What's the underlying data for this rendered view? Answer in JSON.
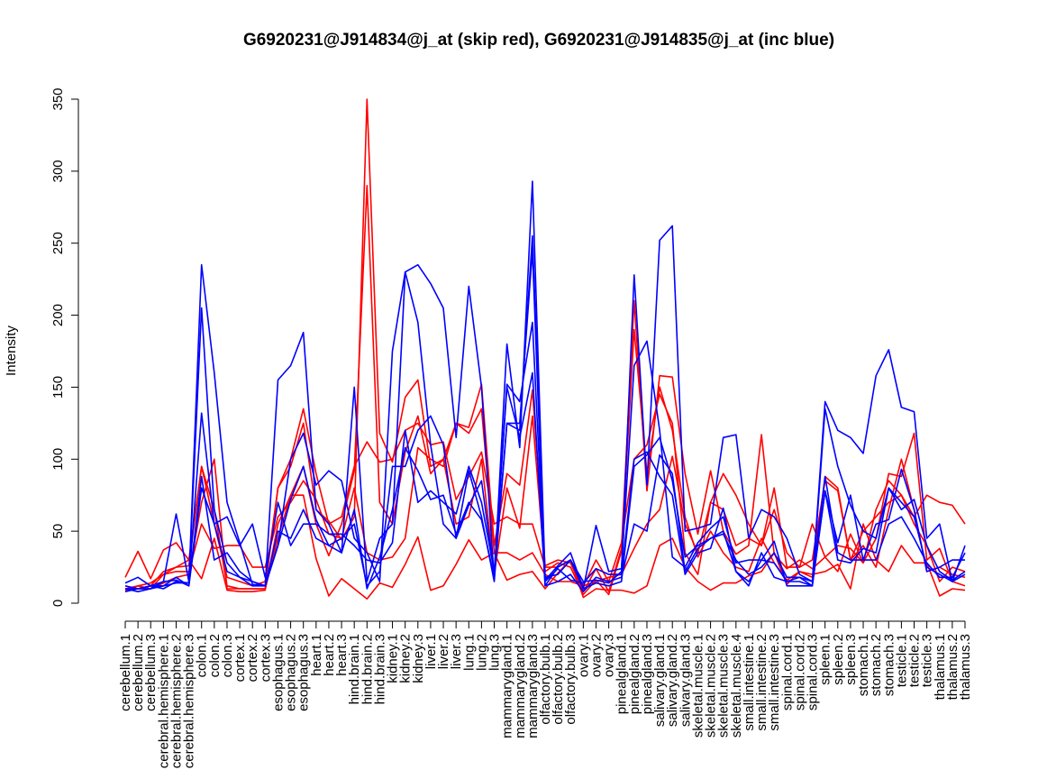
{
  "chart_data": {
    "type": "line",
    "title": "G6920231@J914834@j_at (skip red), G6920231@J914835@j_at (inc blue)",
    "xlabel": "",
    "ylabel": "Intensity",
    "ylim": [
      0,
      350
    ],
    "yticks": [
      0,
      50,
      100,
      150,
      200,
      250,
      300,
      350
    ],
    "grid": false,
    "legend": "none",
    "colors": {
      "skip": "#ff0000",
      "inc": "#0000ff",
      "axis": "#000000"
    },
    "categories": [
      "cerebellum.1",
      "cerebellum.2",
      "cerebellum.3",
      "cerebral.hemisphere.1",
      "cerebral.hemisphere.2",
      "cerebral.hemisphere.3",
      "colon.1",
      "colon.2",
      "colon.3",
      "cortex.1",
      "cortex.2",
      "cortex.3",
      "esophagus.1",
      "esophagus.2",
      "esophagus.3",
      "heart.1",
      "heart.2",
      "heart.3",
      "hind.brain.1",
      "hind.brain.2",
      "hind.brain.3",
      "kidney.1",
      "kidney.2",
      "kidney.3",
      "liver.1",
      "liver.2",
      "liver.3",
      "lung.1",
      "lung.2",
      "lung.3",
      "mammarygland.1",
      "mammarygland.2",
      "mammarygland.3",
      "olfactory.bulb.1",
      "olfactory.bulb.2",
      "olfactory.bulb.3",
      "ovary.1",
      "ovary.2",
      "ovary.3",
      "pinealgland.1",
      "pinealgland.2",
      "pinealgland.3",
      "salivary.gland.1",
      "salivary.gland.2",
      "salivary.gland.3",
      "skeletal.muscle.1",
      "skeletal.muscle.2",
      "skeletal.muscle.3",
      "skeletal.muscle.4",
      "small.intestine.1",
      "small.intestine.2",
      "small.intestine.3",
      "spinal.cord.1",
      "spinal.cord.2",
      "spinal.cord.3",
      "spleen.1",
      "spleen.2",
      "spleen.3",
      "stomach.1",
      "stomach.2",
      "stomach.3",
      "testicle.1",
      "testicle.2",
      "testicle.3",
      "thalamus.1",
      "thalamus.2",
      "thalamus.3"
    ],
    "series": [
      {
        "group": "skip",
        "values": [
          18,
          36,
          17,
          37,
          42,
          30,
          17,
          45,
          9,
          8,
          8,
          9,
          55,
          75,
          75,
          31,
          5,
          17,
          10,
          3,
          14,
          11,
          27,
          46,
          9,
          12,
          27,
          44,
          30,
          35,
          16,
          20,
          22,
          10,
          21,
          30,
          4,
          10,
          9,
          9,
          7,
          12,
          40,
          45,
          25,
          15,
          9,
          14,
          14,
          19,
          22,
          35,
          13,
          22,
          20,
          22,
          27,
          10,
          55,
          30,
          22,
          40,
          28,
          28,
          5,
          10,
          9
        ]
      },
      {
        "group": "skip",
        "values": [
          10,
          10,
          12,
          22,
          25,
          26,
          95,
          65,
          12,
          10,
          10,
          10,
          80,
          95,
          125,
          65,
          57,
          44,
          60,
          350,
          118,
          98,
          143,
          155,
          95,
          100,
          125,
          122,
          152,
          40,
          90,
          82,
          148,
          26,
          30,
          28,
          8,
          24,
          8,
          38,
          210,
          78,
          158,
          157,
          90,
          48,
          92,
          50,
          34,
          40,
          117,
          34,
          24,
          30,
          24,
          32,
          40,
          38,
          28,
          45,
          90,
          88,
          118,
          30,
          38,
          15,
          12
        ]
      },
      {
        "group": "skip",
        "values": [
          9,
          10,
          10,
          14,
          18,
          20,
          70,
          100,
          10,
          10,
          10,
          10,
          45,
          75,
          95,
          55,
          33,
          55,
          92,
          290,
          70,
          55,
          105,
          130,
          90,
          100,
          55,
          60,
          100,
          20,
          80,
          52,
          130,
          22,
          28,
          25,
          6,
          16,
          6,
          36,
          190,
          90,
          150,
          120,
          60,
          32,
          50,
          35,
          25,
          22,
          45,
          28,
          16,
          22,
          18,
          88,
          80,
          30,
          40,
          25,
          65,
          100,
          65,
          22,
          25,
          20,
          18
        ]
      },
      {
        "group": "skip",
        "values": [
          8,
          12,
          10,
          20,
          22,
          22,
          55,
          38,
          40,
          40,
          25,
          25,
          60,
          70,
          85,
          72,
          48,
          45,
          80,
          35,
          30,
          32,
          45,
          108,
          100,
          95,
          125,
          118,
          135,
          35,
          35,
          30,
          35,
          20,
          15,
          15,
          12,
          15,
          18,
          20,
          38,
          55,
          65,
          102,
          55,
          35,
          70,
          90,
          75,
          55,
          40,
          65,
          35,
          25,
          55,
          32,
          22,
          48,
          28,
          65,
          85,
          75,
          55,
          40,
          15,
          25,
          22
        ]
      },
      {
        "group": "skip",
        "values": [
          10,
          12,
          14,
          20,
          25,
          30,
          95,
          55,
          18,
          15,
          12,
          15,
          80,
          100,
          135,
          90,
          55,
          60,
          95,
          112,
          98,
          100,
          120,
          125,
          110,
          112,
          72,
          88,
          105,
          55,
          60,
          55,
          55,
          25,
          25,
          30,
          12,
          30,
          15,
          42,
          100,
          110,
          145,
          125,
          35,
          20,
          70,
          65,
          40,
          45,
          40,
          80,
          25,
          25,
          30,
          85,
          78,
          30,
          50,
          60,
          70,
          75,
          60,
          75,
          70,
          68,
          55
        ]
      },
      {
        "group": "inc",
        "values": [
          14,
          18,
          12,
          10,
          15,
          14,
          235,
          160,
          70,
          42,
          13,
          12,
          155,
          165,
          188,
          65,
          55,
          35,
          150,
          15,
          45,
          55,
          230,
          235,
          222,
          205,
          115,
          220,
          150,
          16,
          180,
          108,
          293,
          18,
          20,
          30,
          15,
          16,
          14,
          22,
          228,
          82,
          252,
          262,
          50,
          52,
          55,
          115,
          117,
          45,
          65,
          60,
          45,
          20,
          15,
          140,
          120,
          115,
          104,
          158,
          176,
          136,
          133,
          45,
          55,
          15,
          40
        ]
      },
      {
        "group": "inc",
        "values": [
          10,
          8,
          10,
          15,
          62,
          15,
          205,
          65,
          28,
          18,
          12,
          12,
          40,
          100,
          118,
          82,
          92,
          85,
          45,
          35,
          15,
          175,
          230,
          195,
          110,
          55,
          45,
          92,
          60,
          15,
          125,
          120,
          255,
          16,
          26,
          35,
          10,
          54,
          22,
          24,
          165,
          182,
          120,
          32,
          25,
          42,
          52,
          60,
          28,
          30,
          30,
          43,
          12,
          12,
          12,
          135,
          95,
          68,
          50,
          45,
          80,
          65,
          72,
          40,
          22,
          16,
          22
        ]
      },
      {
        "group": "inc",
        "values": [
          12,
          10,
          12,
          12,
          14,
          14,
          132,
          55,
          60,
          40,
          55,
          18,
          70,
          40,
          55,
          55,
          48,
          48,
          40,
          30,
          28,
          42,
          120,
          70,
          78,
          70,
          62,
          95,
          70,
          22,
          152,
          140,
          195,
          15,
          24,
          16,
          14,
          24,
          20,
          20,
          100,
          105,
          88,
          75,
          20,
          35,
          38,
          66,
          22,
          12,
          35,
          18,
          15,
          15,
          12,
          78,
          42,
          75,
          30,
          55,
          58,
          93,
          65,
          22,
          25,
          30,
          30
        ]
      },
      {
        "group": "inc",
        "values": [
          10,
          10,
          10,
          12,
          18,
          12,
          80,
          55,
          22,
          18,
          15,
          12,
          50,
          45,
          65,
          45,
          40,
          45,
          55,
          12,
          22,
          95,
          95,
          120,
          130,
          110,
          45,
          68,
          85,
          20,
          150,
          115,
          160,
          12,
          15,
          20,
          8,
          18,
          15,
          18,
          55,
          50,
          103,
          90,
          22,
          38,
          45,
          50,
          22,
          15,
          30,
          28,
          15,
          18,
          12,
          78,
          30,
          28,
          38,
          35,
          80,
          70,
          60,
          25,
          20,
          15,
          20
        ]
      },
      {
        "group": "inc",
        "values": [
          8,
          10,
          12,
          15,
          16,
          12,
          88,
          30,
          35,
          22,
          15,
          12,
          40,
          72,
          95,
          58,
          40,
          35,
          65,
          10,
          32,
          65,
          108,
          92,
          72,
          75,
          48,
          70,
          58,
          18,
          125,
          125,
          245,
          12,
          25,
          30,
          10,
          14,
          12,
          15,
          95,
          103,
          115,
          85,
          32,
          40,
          45,
          48,
          30,
          20,
          25,
          35,
          18,
          18,
          15,
          88,
          35,
          30,
          30,
          30,
          55,
          60,
          45,
          28,
          18,
          18,
          35
        ]
      }
    ]
  }
}
